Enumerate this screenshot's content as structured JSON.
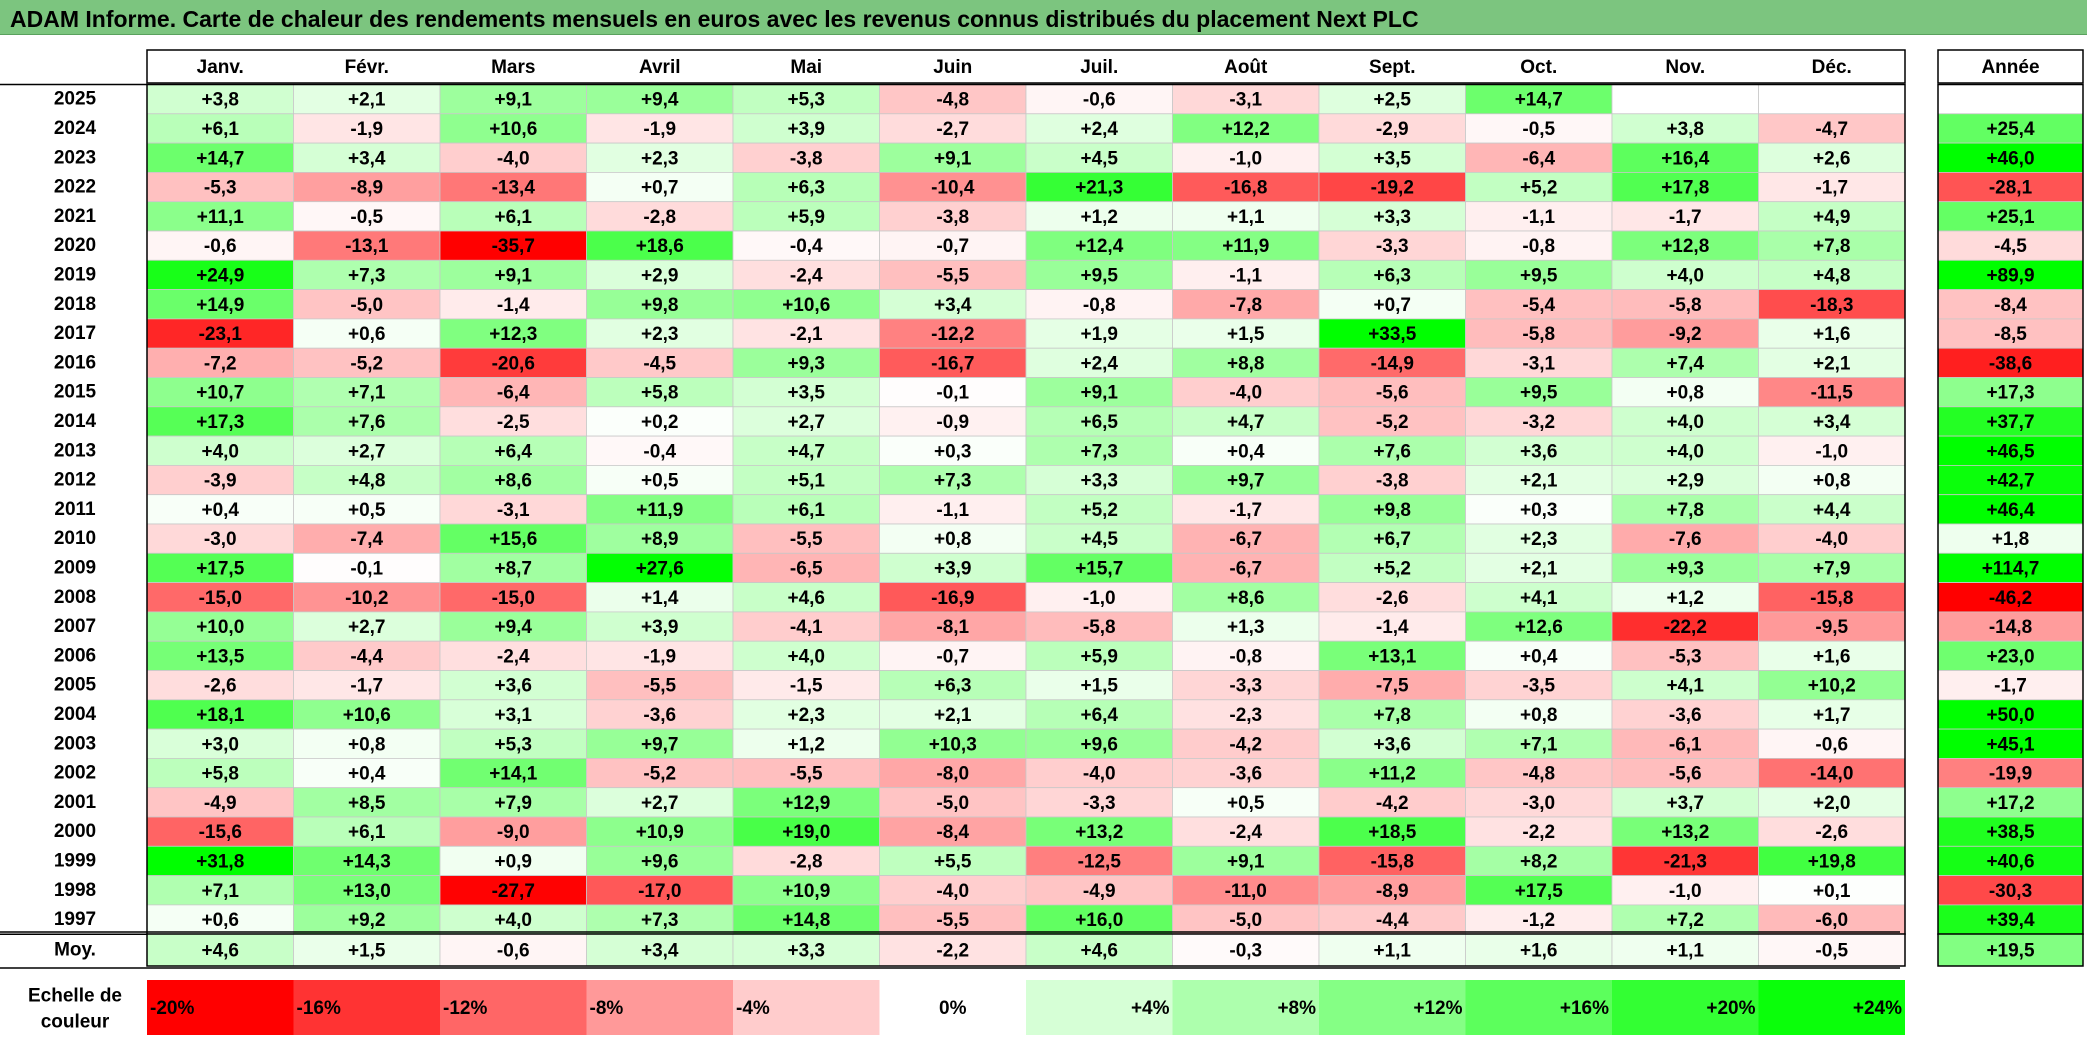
{
  "title": "ADAM Informe. Carte de chaleur des rendements mensuels en euros avec les revenus connus distribués du placement Next PLC",
  "chart_data": {
    "type": "heatmap",
    "title": "ADAM Informe. Carte de chaleur des rendements mensuels en euros avec les revenus connus distribués du placement Next PLC",
    "columns": [
      "Janv.",
      "Févr.",
      "Mars",
      "Avril",
      "Mai",
      "Juin",
      "Juil.",
      "Août",
      "Sept.",
      "Oct.",
      "Nov.",
      "Déc."
    ],
    "year_header": "Année",
    "rows": [
      {
        "year": "2025",
        "values": [
          "+3,8",
          "+2,1",
          "+9,1",
          "+9,4",
          "+5,3",
          "-4,8",
          "-0,6",
          "-3,1",
          "+2,5",
          "+14,7",
          "",
          ""
        ],
        "annual": ""
      },
      {
        "year": "2024",
        "values": [
          "+6,1",
          "-1,9",
          "+10,6",
          "-1,9",
          "+3,9",
          "-2,7",
          "+2,4",
          "+12,2",
          "-2,9",
          "-0,5",
          "+3,8",
          "-4,7"
        ],
        "annual": "+25,4"
      },
      {
        "year": "2023",
        "values": [
          "+14,7",
          "+3,4",
          "-4,0",
          "+2,3",
          "-3,8",
          "+9,1",
          "+4,5",
          "-1,0",
          "+3,5",
          "-6,4",
          "+16,4",
          "+2,6"
        ],
        "annual": "+46,0"
      },
      {
        "year": "2022",
        "values": [
          "-5,3",
          "-8,9",
          "-13,4",
          "+0,7",
          "+6,3",
          "-10,4",
          "+21,3",
          "-16,8",
          "-19,2",
          "+5,2",
          "+17,8",
          "-1,7"
        ],
        "annual": "-28,1"
      },
      {
        "year": "2021",
        "values": [
          "+11,1",
          "-0,5",
          "+6,1",
          "-2,8",
          "+5,9",
          "-3,8",
          "+1,2",
          "+1,1",
          "+3,3",
          "-1,1",
          "-1,7",
          "+4,9"
        ],
        "annual": "+25,1"
      },
      {
        "year": "2020",
        "values": [
          "-0,6",
          "-13,1",
          "-35,7",
          "+18,6",
          "-0,4",
          "-0,7",
          "+12,4",
          "+11,9",
          "-3,3",
          "-0,8",
          "+12,8",
          "+7,8"
        ],
        "annual": "-4,5"
      },
      {
        "year": "2019",
        "values": [
          "+24,9",
          "+7,3",
          "+9,1",
          "+2,9",
          "-2,4",
          "-5,5",
          "+9,5",
          "-1,1",
          "+6,3",
          "+9,5",
          "+4,0",
          "+4,8"
        ],
        "annual": "+89,9"
      },
      {
        "year": "2018",
        "values": [
          "+14,9",
          "-5,0",
          "-1,4",
          "+9,8",
          "+10,6",
          "+3,4",
          "-0,8",
          "-7,8",
          "+0,7",
          "-5,4",
          "-5,8",
          "-18,3"
        ],
        "annual": "-8,4"
      },
      {
        "year": "2017",
        "values": [
          "-23,1",
          "+0,6",
          "+12,3",
          "+2,3",
          "-2,1",
          "-12,2",
          "+1,9",
          "+1,5",
          "+33,5",
          "-5,8",
          "-9,2",
          "+1,6"
        ],
        "annual": "-8,5"
      },
      {
        "year": "2016",
        "values": [
          "-7,2",
          "-5,2",
          "-20,6",
          "-4,5",
          "+9,3",
          "-16,7",
          "+2,4",
          "+8,8",
          "-14,9",
          "-3,1",
          "+7,4",
          "+2,1"
        ],
        "annual": "-38,6"
      },
      {
        "year": "2015",
        "values": [
          "+10,7",
          "+7,1",
          "-6,4",
          "+5,8",
          "+3,5",
          "-0,1",
          "+9,1",
          "-4,0",
          "-5,6",
          "+9,5",
          "+0,8",
          "-11,5"
        ],
        "annual": "+17,3"
      },
      {
        "year": "2014",
        "values": [
          "+17,3",
          "+7,6",
          "-2,5",
          "+0,2",
          "+2,7",
          "-0,9",
          "+6,5",
          "+4,7",
          "-5,2",
          "-3,2",
          "+4,0",
          "+3,4"
        ],
        "annual": "+37,7"
      },
      {
        "year": "2013",
        "values": [
          "+4,0",
          "+2,7",
          "+6,4",
          "-0,4",
          "+4,7",
          "+0,3",
          "+7,3",
          "+0,4",
          "+7,6",
          "+3,6",
          "+4,0",
          "-1,0"
        ],
        "annual": "+46,5"
      },
      {
        "year": "2012",
        "values": [
          "-3,9",
          "+4,8",
          "+8,6",
          "+0,5",
          "+5,1",
          "+7,3",
          "+3,3",
          "+9,7",
          "-3,8",
          "+2,1",
          "+2,9",
          "+0,8"
        ],
        "annual": "+42,7"
      },
      {
        "year": "2011",
        "values": [
          "+0,4",
          "+0,5",
          "-3,1",
          "+11,9",
          "+6,1",
          "-1,1",
          "+5,2",
          "-1,7",
          "+9,8",
          "+0,3",
          "+7,8",
          "+4,4"
        ],
        "annual": "+46,4"
      },
      {
        "year": "2010",
        "values": [
          "-3,0",
          "-7,4",
          "+15,6",
          "+8,9",
          "-5,5",
          "+0,8",
          "+4,5",
          "-6,7",
          "+6,7",
          "+2,3",
          "-7,6",
          "-4,0"
        ],
        "annual": "+1,8"
      },
      {
        "year": "2009",
        "values": [
          "+17,5",
          "-0,1",
          "+8,7",
          "+27,6",
          "-6,5",
          "+3,9",
          "+15,7",
          "-6,7",
          "+5,2",
          "+2,1",
          "+9,3",
          "+7,9"
        ],
        "annual": "+114,7"
      },
      {
        "year": "2008",
        "values": [
          "-15,0",
          "-10,2",
          "-15,0",
          "+1,4",
          "+4,6",
          "-16,9",
          "-1,0",
          "+8,6",
          "-2,6",
          "+4,1",
          "+1,2",
          "-15,8"
        ],
        "annual": "-46,2"
      },
      {
        "year": "2007",
        "values": [
          "+10,0",
          "+2,7",
          "+9,4",
          "+3,9",
          "-4,1",
          "-8,1",
          "-5,8",
          "+1,3",
          "-1,4",
          "+12,6",
          "-22,2",
          "-9,5"
        ],
        "annual": "-14,8"
      },
      {
        "year": "2006",
        "values": [
          "+13,5",
          "-4,4",
          "-2,4",
          "-1,9",
          "+4,0",
          "-0,7",
          "+5,9",
          "-0,8",
          "+13,1",
          "+0,4",
          "-5,3",
          "+1,6"
        ],
        "annual": "+23,0"
      },
      {
        "year": "2005",
        "values": [
          "-2,6",
          "-1,7",
          "+3,6",
          "-5,5",
          "-1,5",
          "+6,3",
          "+1,5",
          "-3,3",
          "-7,5",
          "-3,5",
          "+4,1",
          "+10,2"
        ],
        "annual": "-1,7"
      },
      {
        "year": "2004",
        "values": [
          "+18,1",
          "+10,6",
          "+3,1",
          "-3,6",
          "+2,3",
          "+2,1",
          "+6,4",
          "-2,3",
          "+7,8",
          "+0,8",
          "-3,6",
          "+1,7"
        ],
        "annual": "+50,0"
      },
      {
        "year": "2003",
        "values": [
          "+3,0",
          "+0,8",
          "+5,3",
          "+9,7",
          "+1,2",
          "+10,3",
          "+9,6",
          "-4,2",
          "+3,6",
          "+7,1",
          "-6,1",
          "-0,6"
        ],
        "annual": "+45,1"
      },
      {
        "year": "2002",
        "values": [
          "+5,8",
          "+0,4",
          "+14,1",
          "-5,2",
          "-5,5",
          "-8,0",
          "-4,0",
          "-3,6",
          "+11,2",
          "-4,8",
          "-5,6",
          "-14,0"
        ],
        "annual": "-19,9"
      },
      {
        "year": "2001",
        "values": [
          "-4,9",
          "+8,5",
          "+7,9",
          "+2,7",
          "+12,9",
          "-5,0",
          "-3,3",
          "+0,5",
          "-4,2",
          "-3,0",
          "+3,7",
          "+2,0"
        ],
        "annual": "+17,2"
      },
      {
        "year": "2000",
        "values": [
          "-15,6",
          "+6,1",
          "-9,0",
          "+10,9",
          "+19,0",
          "-8,4",
          "+13,2",
          "-2,4",
          "+18,5",
          "-2,2",
          "+13,2",
          "-2,6"
        ],
        "annual": "+38,5"
      },
      {
        "year": "1999",
        "values": [
          "+31,8",
          "+14,3",
          "+0,9",
          "+9,6",
          "-2,8",
          "+5,5",
          "-12,5",
          "+9,1",
          "-15,8",
          "+8,2",
          "-21,3",
          "+19,8"
        ],
        "annual": "+40,6"
      },
      {
        "year": "1998",
        "values": [
          "+7,1",
          "+13,0",
          "-27,7",
          "-17,0",
          "+10,9",
          "-4,0",
          "-4,9",
          "-11,0",
          "-8,9",
          "+17,5",
          "-1,0",
          "+0,1"
        ],
        "annual": "-30,3"
      },
      {
        "year": "1997",
        "values": [
          "+0,6",
          "+9,2",
          "+4,0",
          "+7,3",
          "+14,8",
          "-5,5",
          "+16,0",
          "-5,0",
          "-4,4",
          "-1,2",
          "+7,2",
          "-6,0"
        ],
        "annual": "+39,4"
      }
    ],
    "average": {
      "label": "Moy.",
      "values": [
        "+4,6",
        "+1,5",
        "-0,6",
        "+3,4",
        "+3,3",
        "-2,2",
        "+4,6",
        "-0,3",
        "+1,1",
        "+1,6",
        "+1,1",
        "-0,5"
      ],
      "annual": "+19,5"
    },
    "color_scale": {
      "label_line1": "Echelle de",
      "label_line2": "couleur",
      "steps": [
        {
          "label": "-20%",
          "value": -20,
          "color": "#ff0000"
        },
        {
          "label": "-16%",
          "value": -16,
          "color": "#ff3333"
        },
        {
          "label": "-12%",
          "value": -12,
          "color": "#ff6666"
        },
        {
          "label": "-8%",
          "value": -8,
          "color": "#ff9999"
        },
        {
          "label": "-4%",
          "value": -4,
          "color": "#ffcccc"
        },
        {
          "label": "0%",
          "value": 0,
          "color": "#ffffff"
        },
        {
          "label": "+4%",
          "value": 4,
          "color": "#d6ffd6"
        },
        {
          "label": "+8%",
          "value": 8,
          "color": "#adffad"
        },
        {
          "label": "+12%",
          "value": 12,
          "color": "#85ff85"
        },
        {
          "label": "+16%",
          "value": 16,
          "color": "#5cff5c"
        },
        {
          "label": "+20%",
          "value": 20,
          "color": "#33ff33"
        },
        {
          "label": "+24%",
          "value": 24,
          "color": "#0aff0a"
        }
      ]
    },
    "colors": {
      "title_bar": "#7cc57f",
      "negative_max": "#ff0000",
      "positive_max": "#00ff00",
      "neutral": "#ffffff"
    }
  }
}
